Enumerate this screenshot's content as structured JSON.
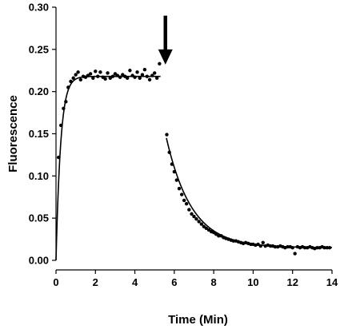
{
  "chart_data": {
    "type": "scatter",
    "title": "",
    "xlabel": "Time (Min)",
    "ylabel": "Fluorescence",
    "xlim": [
      0,
      14
    ],
    "ylim": [
      0,
      0.3
    ],
    "x_ticks": [
      "0",
      "2",
      "4",
      "6",
      "8",
      "10",
      "12",
      "14"
    ],
    "y_ticks": [
      "0.00",
      "0.05",
      "0.10",
      "0.15",
      "0.20",
      "0.25",
      "0.30"
    ],
    "grid": false,
    "legend": "none",
    "arrow_annotation": {
      "x": 5.55,
      "y_from": 0.29,
      "y_to": 0.232
    },
    "series": [
      {
        "kind": "points",
        "x": [
          0.13,
          0.25,
          0.38,
          0.5,
          0.62,
          0.75,
          0.88,
          1.0,
          1.12,
          1.25,
          1.38,
          1.5,
          1.62,
          1.75,
          1.88,
          2.0,
          2.12,
          2.25,
          2.38,
          2.5,
          2.62,
          2.75,
          2.88,
          3.0,
          3.12,
          3.25,
          3.38,
          3.5,
          3.62,
          3.75,
          3.88,
          4.0,
          4.12,
          4.25,
          4.38,
          4.5,
          4.62,
          4.75,
          4.88,
          5.0,
          5.12,
          5.25
        ],
        "y": [
          0.122,
          0.16,
          0.18,
          0.188,
          0.205,
          0.212,
          0.216,
          0.22,
          0.223,
          0.214,
          0.218,
          0.217,
          0.219,
          0.221,
          0.216,
          0.224,
          0.218,
          0.223,
          0.217,
          0.215,
          0.222,
          0.216,
          0.218,
          0.221,
          0.219,
          0.217,
          0.22,
          0.218,
          0.216,
          0.225,
          0.219,
          0.217,
          0.223,
          0.216,
          0.22,
          0.226,
          0.218,
          0.214,
          0.219,
          0.222,
          0.216,
          0.233
        ]
      },
      {
        "kind": "points",
        "x": [
          5.62,
          5.75,
          5.88,
          6.0,
          6.12,
          6.25,
          6.38,
          6.5,
          6.62,
          6.75,
          6.88,
          7.0,
          7.12,
          7.25,
          7.38,
          7.5,
          7.62,
          7.75,
          7.88,
          8.0,
          8.12,
          8.25,
          8.38,
          8.5,
          8.62,
          8.75,
          8.88,
          9.0,
          9.12,
          9.25,
          9.38,
          9.5,
          9.62,
          9.75,
          9.88,
          10.0,
          10.12,
          10.25,
          10.38,
          10.5,
          10.62,
          10.75,
          10.88,
          11.0,
          11.12,
          11.25,
          11.38,
          11.5,
          11.62,
          11.75,
          11.88,
          12.0,
          12.12,
          12.25,
          12.38,
          12.5,
          12.62,
          12.75,
          12.88,
          13.0,
          13.12,
          13.25,
          13.38,
          13.5,
          13.62,
          13.75,
          13.88
        ],
        "y": [
          0.149,
          0.128,
          0.114,
          0.105,
          0.095,
          0.085,
          0.078,
          0.071,
          0.067,
          0.06,
          0.055,
          0.052,
          0.049,
          0.046,
          0.043,
          0.04,
          0.038,
          0.036,
          0.034,
          0.033,
          0.031,
          0.029,
          0.029,
          0.027,
          0.026,
          0.025,
          0.024,
          0.023,
          0.023,
          0.022,
          0.021,
          0.02,
          0.021,
          0.02,
          0.019,
          0.019,
          0.018,
          0.019,
          0.017,
          0.021,
          0.017,
          0.018,
          0.017,
          0.017,
          0.016,
          0.016,
          0.017,
          0.016,
          0.015,
          0.016,
          0.016,
          0.015,
          0.008,
          0.016,
          0.015,
          0.016,
          0.015,
          0.015,
          0.016,
          0.015,
          0.014,
          0.015,
          0.015,
          0.016,
          0.015,
          0.015,
          0.015
        ]
      }
    ],
    "fit_curves": [
      {
        "model": "rise",
        "x_start": 0.0,
        "x_end": 5.3,
        "plateau": 0.218,
        "rate": 4.2
      },
      {
        "model": "decay",
        "x_start": 5.6,
        "x_end": 14.0,
        "y0": 0.145,
        "baseline": 0.015,
        "rate": 0.78
      }
    ]
  }
}
